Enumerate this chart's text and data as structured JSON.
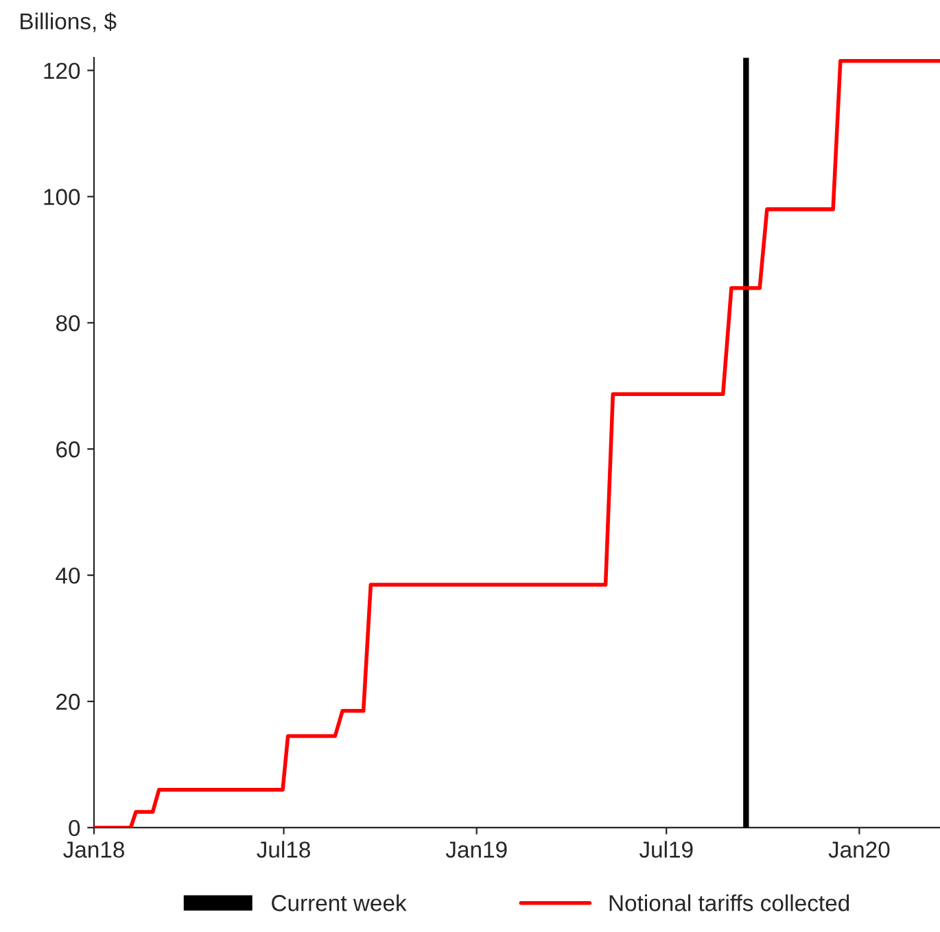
{
  "chart_data": {
    "type": "line",
    "ylabel": "Billions, $",
    "series": [
      {
        "name": "Notional tariffs collected",
        "color": "#ff0000",
        "x": [
          "2018-01-01",
          "2018-02-05",
          "2018-02-10",
          "2018-02-26",
          "2018-03-04",
          "2018-06-30",
          "2018-07-05",
          "2018-08-19",
          "2018-08-26",
          "2018-09-15",
          "2018-09-22",
          "2019-05-04",
          "2019-05-11",
          "2019-08-24",
          "2019-09-01",
          "2019-09-28",
          "2019-10-05",
          "2019-12-07",
          "2019-12-14",
          "2020-03-18"
        ],
        "values": [
          0,
          0,
          2.5,
          2.5,
          6,
          6,
          14.5,
          14.5,
          18.5,
          18.5,
          38.5,
          38.5,
          68.7,
          68.7,
          85.5,
          85.5,
          98,
          98,
          121.5,
          121.5
        ]
      }
    ],
    "ref_lines": [
      {
        "axis": "x",
        "value": "2019-09-15",
        "label": "Current week",
        "color": "#000000"
      }
    ],
    "xlim": [
      "2018-01-01",
      "2020-03-18"
    ],
    "xticks": [
      {
        "value": "2018-01-01",
        "label": "Jan18"
      },
      {
        "value": "2018-07-01",
        "label": "Jul18"
      },
      {
        "value": "2019-01-01",
        "label": "Jan19"
      },
      {
        "value": "2019-07-01",
        "label": "Jul19"
      },
      {
        "value": "2020-01-01",
        "label": "Jan20"
      }
    ],
    "ylim": [
      0,
      122
    ],
    "yticks": [
      0,
      20,
      40,
      60,
      80,
      100,
      120
    ],
    "grid": false,
    "legend": "bottom",
    "marker": "none",
    "line_style": "solid"
  }
}
